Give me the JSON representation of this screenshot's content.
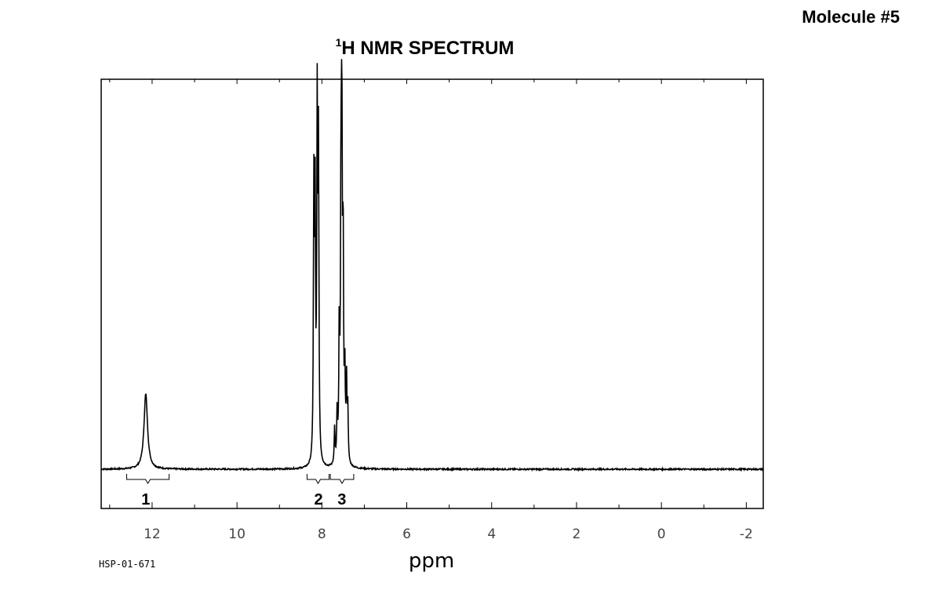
{
  "page": {
    "molecule_label": "Molecule #5",
    "sample_id": "HSP-01-671"
  },
  "chart_data": {
    "type": "line",
    "title_sup": "1",
    "title_main": "H NMR SPECTRUM",
    "xlabel": "ppm",
    "ylabel": "",
    "xlim": [
      13.2,
      -2.4
    ],
    "x_reversed": true,
    "ylim": [
      0,
      1.0
    ],
    "x_ticks": [
      12,
      10,
      8,
      6,
      4,
      2,
      0,
      -2
    ],
    "x_tick_labels": [
      "12",
      "10",
      "8",
      "6",
      "4",
      "2",
      "0",
      "-2"
    ],
    "minor_tick_step": 1,
    "baseline": 0,
    "grid": false,
    "peaks": [
      {
        "ppm": 12.15,
        "height": 0.21,
        "width": 0.05
      },
      {
        "ppm": 8.19,
        "height": 0.75,
        "width": 0.012
      },
      {
        "ppm": 8.16,
        "height": 0.7,
        "width": 0.012
      },
      {
        "ppm": 8.11,
        "height": 0.96,
        "width": 0.012
      },
      {
        "ppm": 8.08,
        "height": 0.85,
        "width": 0.012
      },
      {
        "ppm": 7.7,
        "height": 0.1,
        "width": 0.012
      },
      {
        "ppm": 7.64,
        "height": 0.14,
        "width": 0.012
      },
      {
        "ppm": 7.59,
        "height": 0.38,
        "width": 0.012
      },
      {
        "ppm": 7.55,
        "height": 0.72,
        "width": 0.012
      },
      {
        "ppm": 7.53,
        "height": 0.91,
        "width": 0.012
      },
      {
        "ppm": 7.5,
        "height": 0.6,
        "width": 0.012
      },
      {
        "ppm": 7.46,
        "height": 0.24,
        "width": 0.012
      },
      {
        "ppm": 7.42,
        "height": 0.22,
        "width": 0.012
      },
      {
        "ppm": 7.39,
        "height": 0.15,
        "width": 0.012
      }
    ],
    "integrations": [
      {
        "label": "1",
        "from": 12.6,
        "to": 11.6,
        "label_ppm": 12.15
      },
      {
        "label": "2",
        "from": 8.35,
        "to": 7.83,
        "label_ppm": 8.08
      },
      {
        "label": "3",
        "from": 7.8,
        "to": 7.25,
        "label_ppm": 7.53
      }
    ]
  }
}
